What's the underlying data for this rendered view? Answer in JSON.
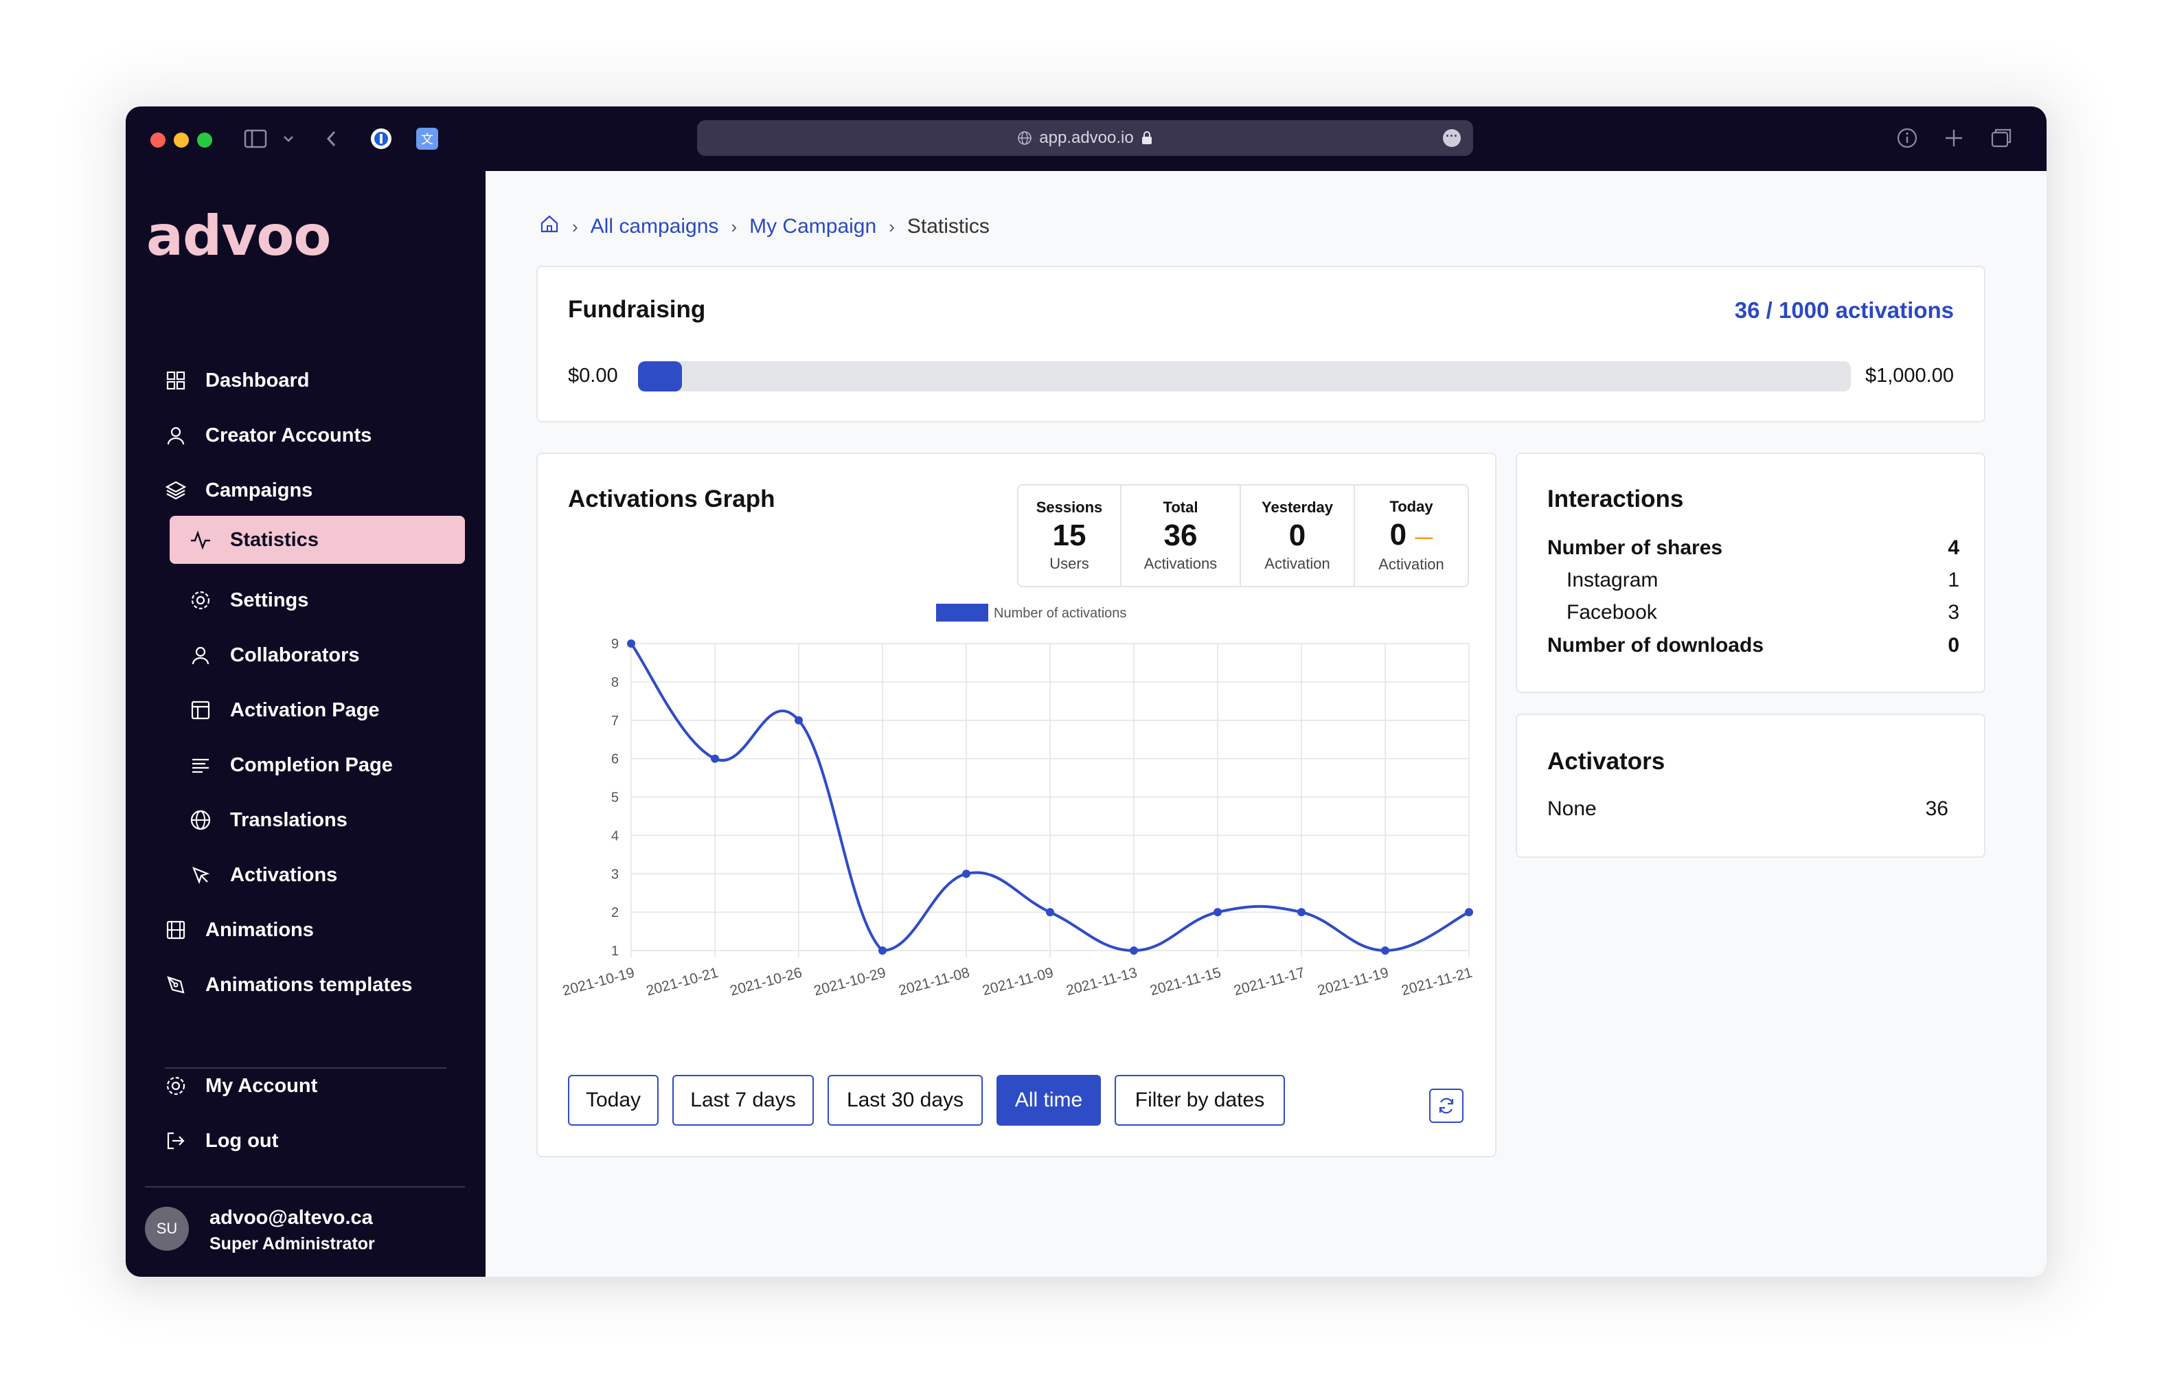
{
  "browser": {
    "url": "app.advoo.io"
  },
  "sidebar": {
    "logo": "advoo",
    "items": [
      {
        "label": "Dashboard",
        "icon": "grid-icon"
      },
      {
        "label": "Creator Accounts",
        "icon": "user-icon"
      },
      {
        "label": "Campaigns",
        "icon": "layers-icon"
      },
      {
        "label": "Statistics",
        "icon": "activity-icon",
        "active": true
      },
      {
        "label": "Settings",
        "icon": "gear-icon"
      },
      {
        "label": "Collaborators",
        "icon": "user-icon"
      },
      {
        "label": "Activation Page",
        "icon": "layout-icon"
      },
      {
        "label": "Completion Page",
        "icon": "lines-icon"
      },
      {
        "label": "Translations",
        "icon": "globe-icon"
      },
      {
        "label": "Activations",
        "icon": "pointer-icon"
      },
      {
        "label": "Animations",
        "icon": "film-icon"
      },
      {
        "label": "Animations templates",
        "icon": "pen-icon"
      },
      {
        "label": "My Account",
        "icon": "gear-icon"
      },
      {
        "label": "Log out",
        "icon": "logout-icon"
      }
    ],
    "user": {
      "initials": "SU",
      "email": "advoo@altevo.ca",
      "role": "Super Administrator"
    }
  },
  "breadcrumb": {
    "items": [
      "All campaigns",
      "My Campaign"
    ],
    "current": "Statistics"
  },
  "fundraising": {
    "title": "Fundraising",
    "activations": "36 / 1000 activations",
    "min": "$0.00",
    "max": "$1,000.00",
    "progress_fraction": 0.036
  },
  "activations_graph": {
    "title": "Activations Graph",
    "stats": [
      {
        "label": "Sessions",
        "value": "15",
        "sub": "Users"
      },
      {
        "label": "Total",
        "value": "36",
        "sub": "Activations"
      },
      {
        "label": "Yesterday",
        "value": "0",
        "sub": "Activation"
      },
      {
        "label": "Today",
        "value": "0",
        "sub": "Activation",
        "trend": "—"
      }
    ],
    "buttons": [
      "Today",
      "Last 7 days",
      "Last 30 days",
      "All time",
      "Filter by dates"
    ],
    "active_button": "All time"
  },
  "interactions": {
    "title": "Interactions",
    "rows": [
      {
        "label": "Number of shares",
        "value": "4",
        "bold": true,
        "indent": false
      },
      {
        "label": "Instagram",
        "value": "1",
        "bold": false,
        "indent": true
      },
      {
        "label": "Facebook",
        "value": "3",
        "bold": false,
        "indent": true
      },
      {
        "label": "Number of downloads",
        "value": "0",
        "bold": true,
        "indent": false
      }
    ]
  },
  "activators": {
    "title": "Activators",
    "rows": [
      {
        "label": "None",
        "value": "36"
      }
    ]
  },
  "colors": {
    "accent": "#2f4cc7",
    "sidebar_bg": "#0e0a24",
    "active_nav": "#f3c6d1",
    "logo": "#f3c6d1"
  },
  "chart_data": {
    "type": "line",
    "legend": "Number of activations",
    "x": [
      "2021-10-19",
      "2021-10-21",
      "2021-10-26",
      "2021-10-29",
      "2021-11-08",
      "2021-11-09",
      "2021-11-13",
      "2021-11-15",
      "2021-11-17",
      "2021-11-19",
      "2021-11-21"
    ],
    "series": [
      {
        "name": "Number of activations",
        "values": [
          9,
          6,
          7,
          1,
          3,
          2,
          1,
          2,
          2,
          1,
          2
        ]
      }
    ],
    "ylim": [
      1,
      9
    ],
    "yticks": [
      1,
      2,
      3,
      4,
      5,
      6,
      7,
      8,
      9
    ],
    "grid": true,
    "legend_position": "top"
  }
}
